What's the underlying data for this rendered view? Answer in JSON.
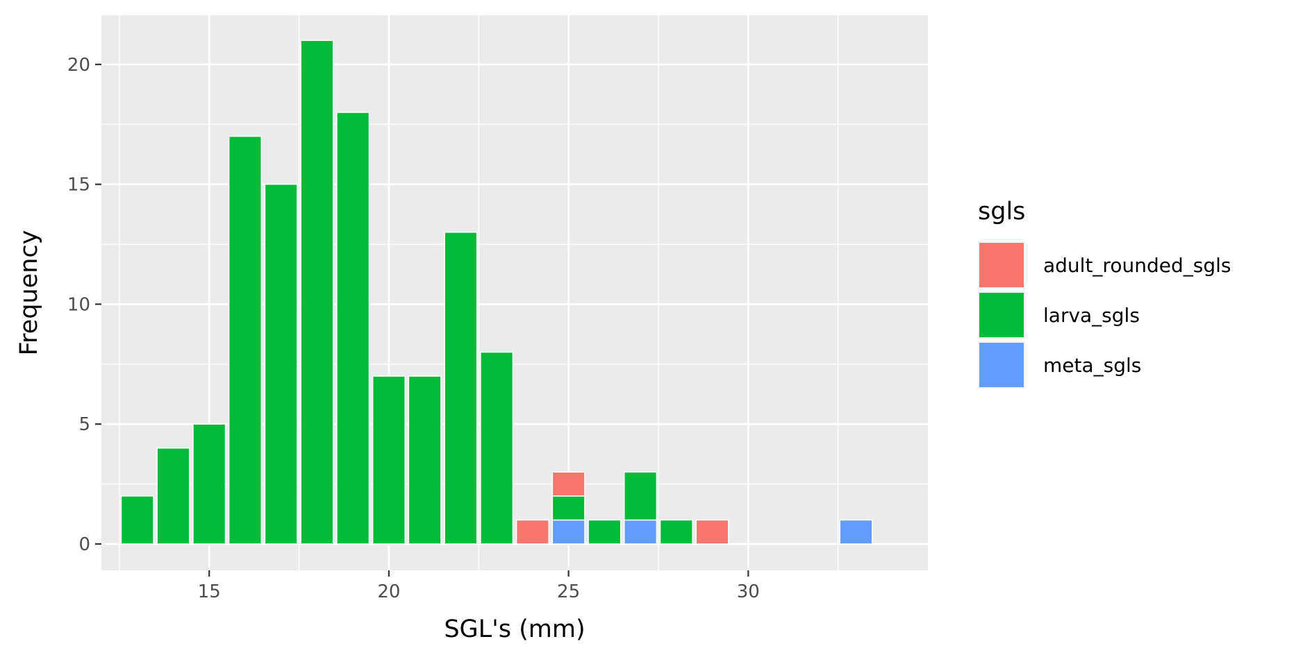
{
  "chart_data": {
    "type": "bar",
    "stacked": true,
    "xlabel": "SGL's (mm)",
    "ylabel": "Frequency",
    "xlim": [
      12.0,
      35.0
    ],
    "ylim": [
      -1.1,
      22.05
    ],
    "xticks": [
      15,
      20,
      25,
      30
    ],
    "yticks": [
      0,
      5,
      10,
      15,
      20
    ],
    "grid": true,
    "bar_width": 0.9,
    "legend": {
      "title": "sgls",
      "position": "right"
    },
    "x": [
      13,
      14,
      15,
      16,
      17,
      18,
      19,
      20,
      21,
      22,
      23,
      24,
      25,
      26,
      27,
      28,
      29,
      33
    ],
    "series": [
      {
        "name": "meta_sgls",
        "color": "#619CFF",
        "values": [
          0,
          0,
          0,
          0,
          0,
          0,
          0,
          0,
          0,
          0,
          0,
          0,
          1,
          0,
          1,
          0,
          0,
          1
        ]
      },
      {
        "name": "larva_sgls",
        "color": "#00BA38",
        "values": [
          2,
          4,
          5,
          17,
          15,
          21,
          18,
          7,
          7,
          13,
          8,
          0,
          1,
          1,
          2,
          1,
          0,
          0
        ]
      },
      {
        "name": "adult_rounded_sgls",
        "color": "#F8766D",
        "values": [
          0,
          0,
          0,
          0,
          0,
          0,
          0,
          0,
          0,
          0,
          0,
          1,
          1,
          0,
          0,
          0,
          1,
          0
        ]
      }
    ],
    "legend_order": [
      "adult_rounded_sgls",
      "larva_sgls",
      "meta_sgls"
    ]
  }
}
